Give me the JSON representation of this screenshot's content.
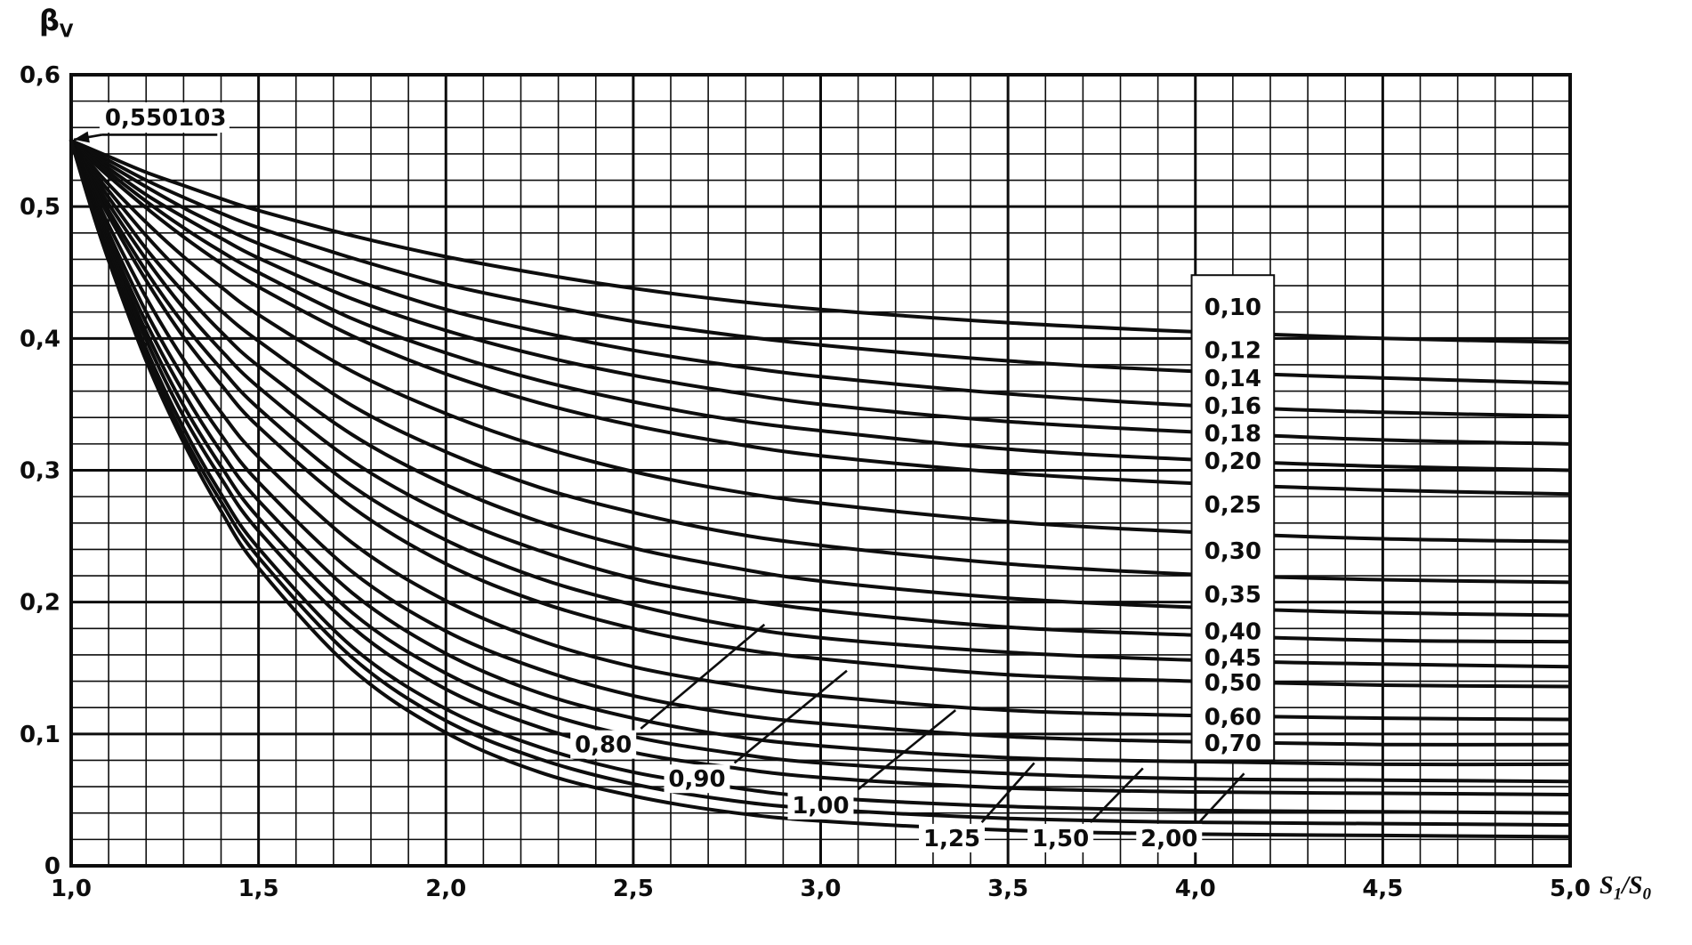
{
  "colors": {
    "ink": "#0d0d0d",
    "paper": "#ffffff"
  },
  "chart_data": {
    "type": "line",
    "title": "",
    "xlabel": "S1/S0",
    "ylabel": "βV",
    "x_title_parts": {
      "base1": "S",
      "sub1": "1",
      "sep": "/",
      "base2": "S",
      "sub2": "0"
    },
    "y_title_parts": {
      "base": "β",
      "sub": "V"
    },
    "xlim": [
      1.0,
      5.0
    ],
    "ylim": [
      0,
      0.6
    ],
    "grid": {
      "x_minor": 0.1,
      "x_major": 0.5,
      "y_minor": 0.02,
      "y_major": 0.1
    },
    "x_ticks": [
      {
        "label": "1,0",
        "value": 1.0
      },
      {
        "label": "1,5",
        "value": 1.5
      },
      {
        "label": "2,0",
        "value": 2.0
      },
      {
        "label": "2,5",
        "value": 2.5
      },
      {
        "label": "3,0",
        "value": 3.0
      },
      {
        "label": "3,5",
        "value": 3.5
      },
      {
        "label": "4,0",
        "value": 4.0
      },
      {
        "label": "4,5",
        "value": 4.5
      },
      {
        "label": "5,0",
        "value": 5.0
      }
    ],
    "y_ticks": [
      {
        "label": "0,6",
        "value": 0.6
      },
      {
        "label": "0,5",
        "value": 0.5
      },
      {
        "label": "0,4",
        "value": 0.4
      },
      {
        "label": "0,3",
        "value": 0.3
      },
      {
        "label": "0,2",
        "value": 0.2
      },
      {
        "label": "0,1",
        "value": 0.1
      },
      {
        "label": "0",
        "value": 0.0
      }
    ],
    "common_start_point": {
      "x": 1.0,
      "y": 0.550103
    },
    "annotation": {
      "text": "0,550103",
      "value": 0.550103,
      "point": [
        1.0,
        0.550103
      ],
      "text_pos": [
        1.09,
        0.5615
      ],
      "underline": [
        [
          1.082,
          0.5545
        ],
        [
          1.39,
          0.5545
        ]
      ],
      "arrow_from": [
        1.082,
        0.5545
      ]
    },
    "x": [
      1.0,
      1.05,
      1.1,
      1.2,
      1.3,
      1.4,
      1.5,
      1.75,
      2.0,
      2.25,
      2.5,
      2.75,
      3.0,
      3.5,
      4.0,
      4.5,
      5.0
    ],
    "series": [
      {
        "name": "0,10",
        "param": 0.1,
        "values": [
          0.55,
          0.544,
          0.538,
          0.526,
          0.516,
          0.506,
          0.497,
          0.478,
          0.462,
          0.449,
          0.438,
          0.429,
          0.422,
          0.412,
          0.405,
          0.4,
          0.397
        ]
      },
      {
        "name": "0,12",
        "param": 0.12,
        "values": [
          0.55,
          0.542,
          0.535,
          0.52,
          0.507,
          0.495,
          0.484,
          0.461,
          0.441,
          0.426,
          0.413,
          0.403,
          0.395,
          0.383,
          0.375,
          0.37,
          0.366
        ]
      },
      {
        "name": "0,14",
        "param": 0.14,
        "values": [
          0.55,
          0.541,
          0.532,
          0.515,
          0.499,
          0.485,
          0.472,
          0.445,
          0.422,
          0.405,
          0.391,
          0.38,
          0.371,
          0.358,
          0.349,
          0.344,
          0.341
        ]
      },
      {
        "name": "0,16",
        "param": 0.16,
        "values": [
          0.55,
          0.539,
          0.529,
          0.509,
          0.492,
          0.476,
          0.461,
          0.43,
          0.406,
          0.387,
          0.372,
          0.36,
          0.35,
          0.337,
          0.329,
          0.323,
          0.32
        ]
      },
      {
        "name": "0,18",
        "param": 0.18,
        "values": [
          0.55,
          0.538,
          0.526,
          0.504,
          0.484,
          0.466,
          0.45,
          0.415,
          0.389,
          0.368,
          0.352,
          0.339,
          0.33,
          0.316,
          0.308,
          0.303,
          0.3
        ]
      },
      {
        "name": "0,20",
        "param": 0.2,
        "values": [
          0.55,
          0.536,
          0.523,
          0.499,
          0.477,
          0.457,
          0.439,
          0.402,
          0.373,
          0.351,
          0.334,
          0.321,
          0.311,
          0.298,
          0.29,
          0.285,
          0.282
        ]
      },
      {
        "name": "0,25",
        "param": 0.25,
        "values": [
          0.55,
          0.533,
          0.517,
          0.488,
          0.462,
          0.439,
          0.418,
          0.375,
          0.343,
          0.318,
          0.299,
          0.285,
          0.275,
          0.261,
          0.253,
          0.248,
          0.246
        ]
      },
      {
        "name": "0,30",
        "param": 0.3,
        "values": [
          0.55,
          0.53,
          0.512,
          0.478,
          0.448,
          0.421,
          0.398,
          0.349,
          0.314,
          0.287,
          0.268,
          0.253,
          0.243,
          0.229,
          0.221,
          0.217,
          0.215
        ]
      },
      {
        "name": "0,35",
        "param": 0.35,
        "values": [
          0.55,
          0.528,
          0.507,
          0.468,
          0.435,
          0.405,
          0.379,
          0.327,
          0.289,
          0.261,
          0.241,
          0.227,
          0.216,
          0.203,
          0.196,
          0.192,
          0.19
        ]
      },
      {
        "name": "0,40",
        "param": 0.4,
        "values": [
          0.55,
          0.525,
          0.502,
          0.46,
          0.423,
          0.391,
          0.363,
          0.307,
          0.267,
          0.239,
          0.218,
          0.204,
          0.194,
          0.181,
          0.175,
          0.171,
          0.17
        ]
      },
      {
        "name": "0,45",
        "param": 0.45,
        "values": [
          0.55,
          0.523,
          0.497,
          0.451,
          0.411,
          0.377,
          0.347,
          0.288,
          0.247,
          0.218,
          0.198,
          0.183,
          0.173,
          0.162,
          0.156,
          0.153,
          0.151
        ]
      },
      {
        "name": "0,50",
        "param": 0.5,
        "values": [
          0.55,
          0.521,
          0.493,
          0.444,
          0.401,
          0.365,
          0.333,
          0.272,
          0.229,
          0.2,
          0.18,
          0.166,
          0.157,
          0.145,
          0.14,
          0.137,
          0.136
        ]
      },
      {
        "name": "0,60",
        "param": 0.6,
        "values": [
          0.55,
          0.517,
          0.486,
          0.431,
          0.384,
          0.344,
          0.31,
          0.245,
          0.201,
          0.171,
          0.151,
          0.138,
          0.129,
          0.118,
          0.114,
          0.112,
          0.111
        ]
      },
      {
        "name": "0,70",
        "param": 0.7,
        "values": [
          0.55,
          0.514,
          0.48,
          0.42,
          0.37,
          0.327,
          0.291,
          0.223,
          0.178,
          0.149,
          0.129,
          0.116,
          0.108,
          0.098,
          0.094,
          0.092,
          0.092
        ]
      },
      {
        "name": "0,80",
        "param": 0.8,
        "values": [
          0.55,
          0.511,
          0.475,
          0.412,
          0.359,
          0.314,
          0.277,
          0.207,
          0.161,
          0.131,
          0.112,
          0.099,
          0.091,
          0.082,
          0.079,
          0.077,
          0.077
        ]
      },
      {
        "name": "0,90",
        "param": 0.9,
        "values": [
          0.55,
          0.509,
          0.471,
          0.405,
          0.349,
          0.303,
          0.264,
          0.192,
          0.146,
          0.117,
          0.098,
          0.086,
          0.078,
          0.07,
          0.066,
          0.065,
          0.064
        ]
      },
      {
        "name": "1,00",
        "param": 1.0,
        "values": [
          0.55,
          0.507,
          0.468,
          0.399,
          0.341,
          0.294,
          0.254,
          0.181,
          0.134,
          0.105,
          0.086,
          0.075,
          0.067,
          0.059,
          0.056,
          0.055,
          0.054
        ]
      },
      {
        "name": "1,25",
        "param": 1.25,
        "values": [
          0.55,
          0.505,
          0.464,
          0.392,
          0.332,
          0.282,
          0.241,
          0.166,
          0.119,
          0.09,
          0.071,
          0.06,
          0.052,
          0.045,
          0.042,
          0.041,
          0.04
        ]
      },
      {
        "name": "1,50",
        "param": 1.5,
        "values": [
          0.55,
          0.504,
          0.461,
          0.387,
          0.326,
          0.276,
          0.234,
          0.158,
          0.11,
          0.081,
          0.062,
          0.05,
          0.043,
          0.036,
          0.033,
          0.032,
          0.031
        ]
      },
      {
        "name": "2,00",
        "param": 2.0,
        "values": [
          0.55,
          0.502,
          0.459,
          0.383,
          0.321,
          0.269,
          0.226,
          0.149,
          0.101,
          0.071,
          0.053,
          0.041,
          0.034,
          0.027,
          0.024,
          0.023,
          0.022
        ]
      }
    ],
    "right_label_box": {
      "x1": 3.99,
      "x2": 4.21,
      "y_bottom": 0.08,
      "y_top": 0.448
    },
    "right_labels": [
      {
        "text": "0,10",
        "y": 0.424
      },
      {
        "text": "0,12",
        "y": 0.391
      },
      {
        "text": "0,14",
        "y": 0.37
      },
      {
        "text": "0,16",
        "y": 0.349
      },
      {
        "text": "0,18",
        "y": 0.328
      },
      {
        "text": "0,20",
        "y": 0.307
      },
      {
        "text": "0,25",
        "y": 0.274
      },
      {
        "text": "0,30",
        "y": 0.239
      },
      {
        "text": "0,35",
        "y": 0.206
      },
      {
        "text": "0,40",
        "y": 0.178
      },
      {
        "text": "0,45",
        "y": 0.158
      },
      {
        "text": "0,50",
        "y": 0.139
      },
      {
        "text": "0,60",
        "y": 0.113
      },
      {
        "text": "0,70",
        "y": 0.093
      }
    ],
    "bottom_labels": [
      {
        "text": "0,80",
        "x": 2.42,
        "y": 0.092,
        "leader": [
          [
            2.52,
            0.104
          ],
          [
            2.85,
            0.183
          ]
        ]
      },
      {
        "text": "0,90",
        "x": 2.67,
        "y": 0.066,
        "leader": [
          [
            2.77,
            0.078
          ],
          [
            3.07,
            0.148
          ]
        ]
      },
      {
        "text": "1,00",
        "x": 3.0,
        "y": 0.046,
        "leader": [
          [
            3.1,
            0.058
          ],
          [
            3.36,
            0.118
          ]
        ]
      },
      {
        "text": "1,25",
        "x": 3.35,
        "y": 0.021,
        "leader": [
          [
            3.43,
            0.033
          ],
          [
            3.57,
            0.078
          ]
        ]
      },
      {
        "text": "1,50",
        "x": 3.64,
        "y": 0.021,
        "leader": [
          [
            3.72,
            0.033
          ],
          [
            3.86,
            0.074
          ]
        ]
      },
      {
        "text": "2,00",
        "x": 3.93,
        "y": 0.021,
        "leader": [
          [
            4.01,
            0.033
          ],
          [
            4.13,
            0.07
          ]
        ]
      }
    ]
  }
}
